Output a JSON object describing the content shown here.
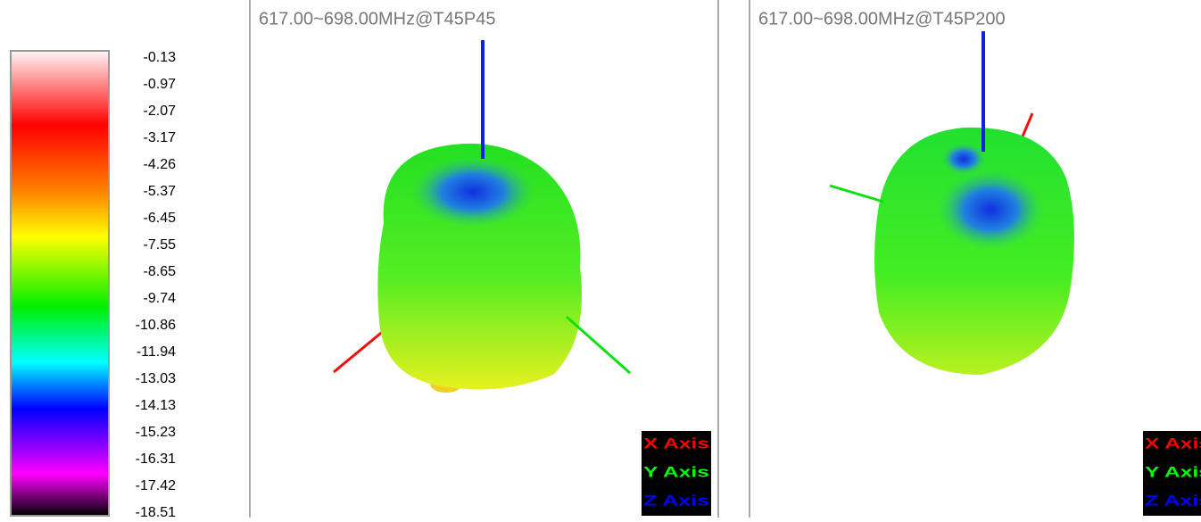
{
  "colorbar": {
    "labels": [
      "-0.13",
      "-0.97",
      "-2.07",
      "-3.17",
      "-4.26",
      "-5.37",
      "-6.45",
      "-7.55",
      "-8.65",
      "-9.74",
      "-10.86",
      "-11.94",
      "-13.03",
      "-14.13",
      "-15.23",
      "-16.31",
      "-17.42",
      "-18.51"
    ]
  },
  "panels": [
    {
      "title": "617.00~698.00MHz@T45P45",
      "legend": [
        "X Axis",
        "Y Axis",
        "Z Axis"
      ]
    },
    {
      "title": "617.00~698.00MHz@T45P200",
      "legend": [
        "X Axis",
        "Y Axis",
        "Z Axis"
      ]
    }
  ]
}
